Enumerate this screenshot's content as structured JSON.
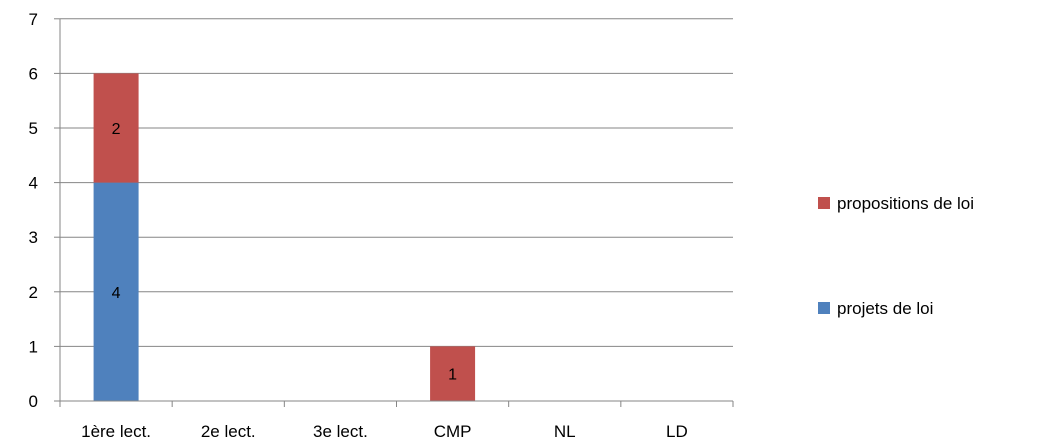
{
  "chart_data": {
    "type": "bar",
    "stacked": true,
    "categories": [
      "1ère lect.",
      "2e lect.",
      "3e lect.",
      "CMP",
      "NL",
      "LD"
    ],
    "series": [
      {
        "name": "projets de loi",
        "color": "#4F81BD",
        "values": [
          4,
          0,
          0,
          0,
          0,
          0
        ]
      },
      {
        "name": "propositions de loi",
        "color": "#C0504D",
        "values": [
          2,
          0,
          0,
          1,
          0,
          0
        ]
      }
    ],
    "ylim": [
      0,
      7
    ],
    "yticks": [
      0,
      1,
      2,
      3,
      4,
      5,
      6,
      7
    ],
    "grid": true,
    "legend_position": "right"
  }
}
